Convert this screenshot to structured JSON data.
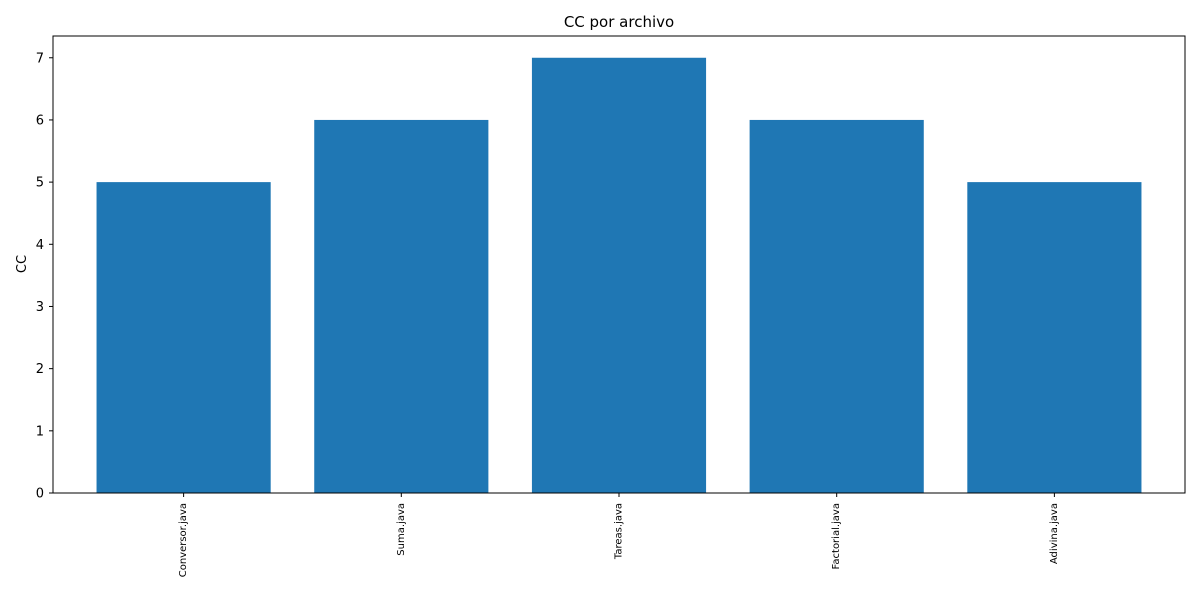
{
  "chart_data": {
    "type": "bar",
    "title": "CC por archivo",
    "xlabel": "",
    "ylabel": "CC",
    "categories": [
      "Conversor.java",
      "Suma.java",
      "Tareas.java",
      "Factorial.java",
      "Adivina.java"
    ],
    "values": [
      5,
      6,
      7,
      6,
      5
    ],
    "ylim": [
      0,
      7.35
    ],
    "yticks": [
      0,
      1,
      2,
      3,
      4,
      5,
      6,
      7
    ],
    "bar_color": "#1f77b4",
    "grid": false,
    "legend": "none"
  }
}
